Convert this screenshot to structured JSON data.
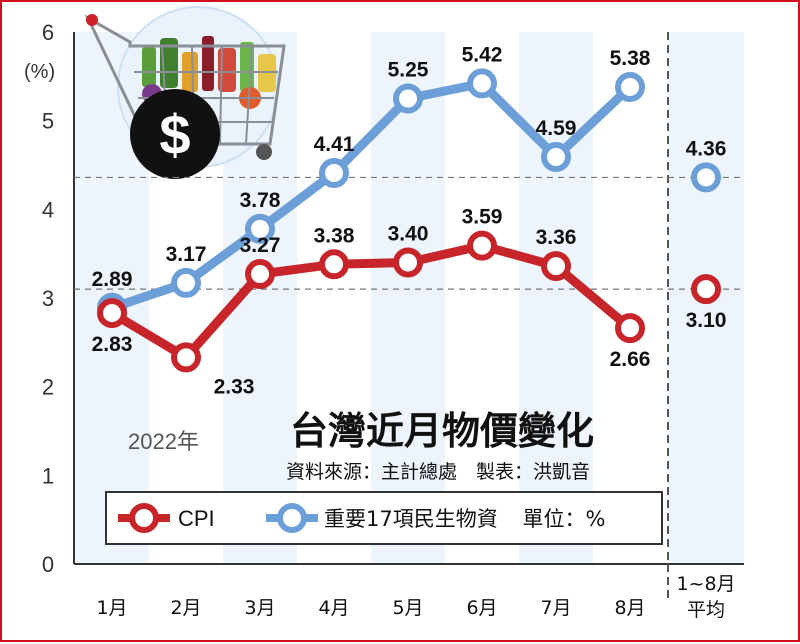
{
  "chart_data": {
    "type": "line",
    "title": "台灣近月物價變化",
    "source": "資料來源：主計總處　製表：洪凱音",
    "year_label": "2022年",
    "ylabel": "(%)",
    "ylim": [
      0,
      6
    ],
    "y_ticks": [
      "0",
      "1",
      "2",
      "3",
      "4",
      "5",
      "6"
    ],
    "categories": [
      "1月",
      "2月",
      "3月",
      "4月",
      "5月",
      "6月",
      "7月",
      "8月"
    ],
    "average_category": [
      "1~8月",
      "平均"
    ],
    "unit_label": "單位：%",
    "series": [
      {
        "name": "CPI",
        "color": "#c8252b",
        "values": [
          2.83,
          2.33,
          3.27,
          3.38,
          3.4,
          3.59,
          3.36,
          2.66
        ],
        "labels": [
          "2.83",
          "2.33",
          "3.27",
          "3.38",
          "3.40",
          "3.59",
          "3.36",
          "2.66"
        ],
        "average": 3.1,
        "average_label": "3.10"
      },
      {
        "name": "重要17項民生物資",
        "color": "#6c9fd8",
        "values": [
          2.89,
          3.17,
          3.78,
          4.41,
          5.25,
          5.42,
          4.59,
          5.38
        ],
        "labels": [
          "2.89",
          "3.17",
          "3.78",
          "4.41",
          "5.25",
          "5.42",
          "4.59",
          "5.38"
        ],
        "average": 4.36,
        "average_label": "4.36"
      }
    ],
    "grid": false,
    "legend_placement": "bottom",
    "illustration": "shopping-basket-dollar-icon"
  }
}
